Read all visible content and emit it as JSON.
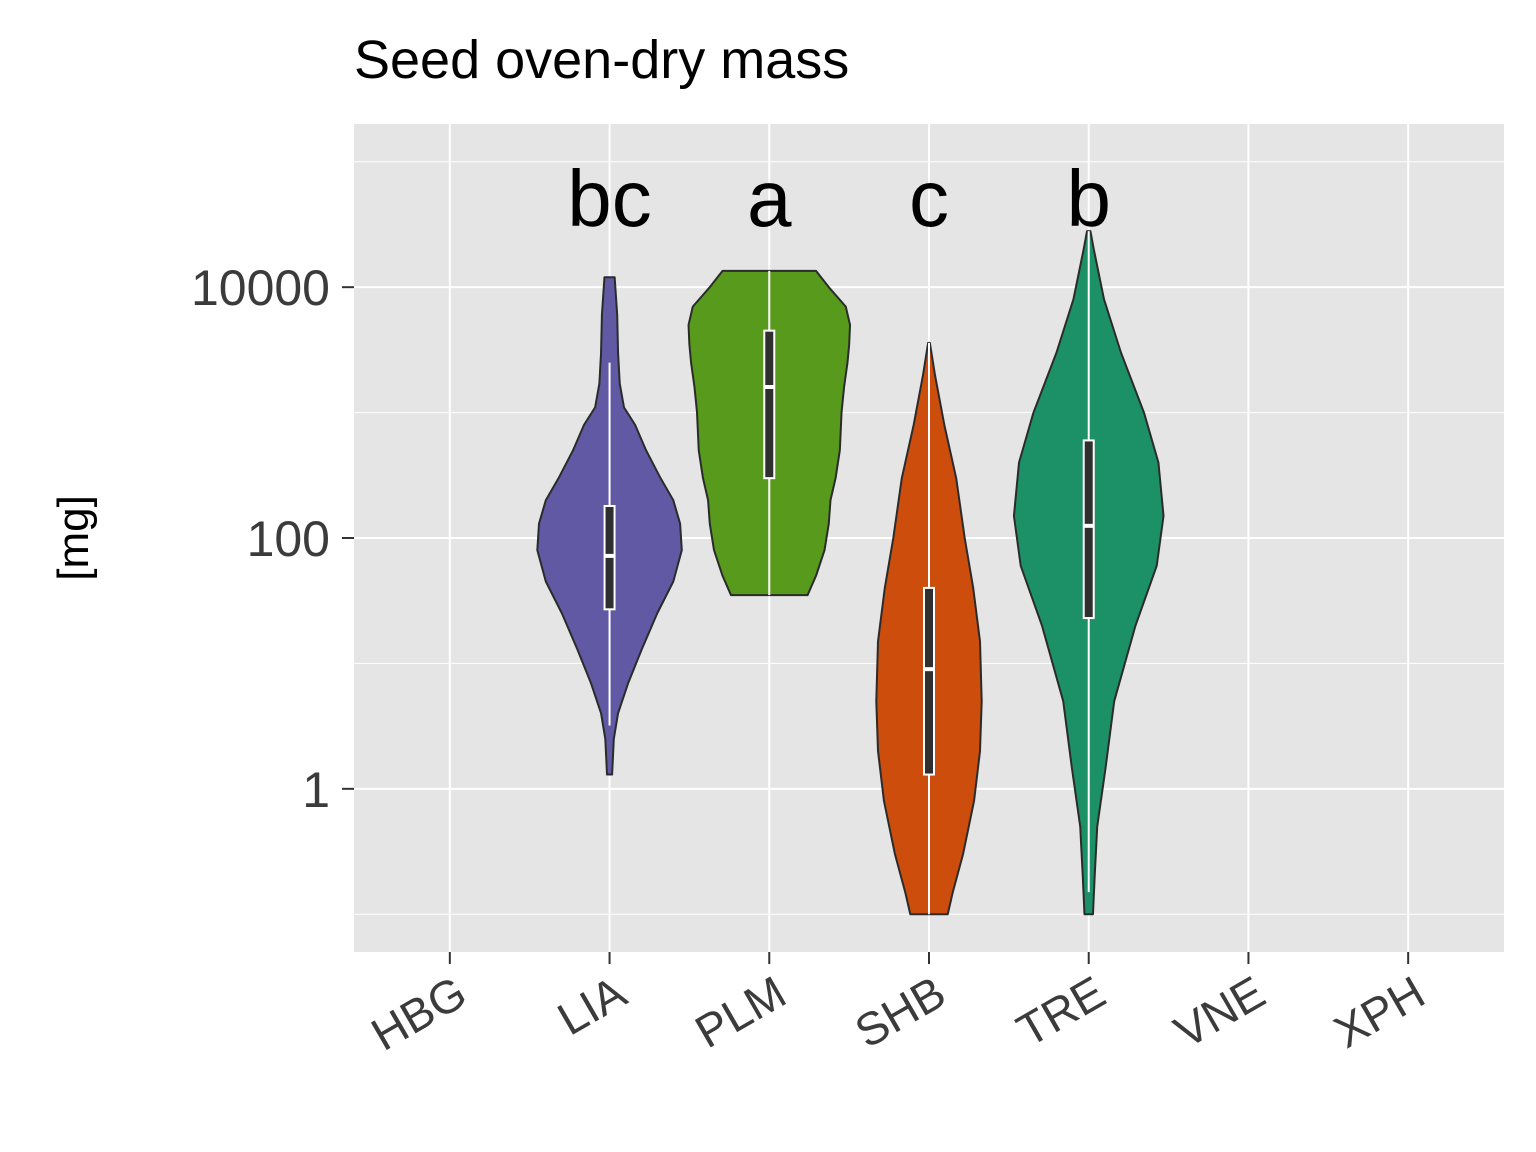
{
  "chart_data": {
    "type": "violin",
    "title": "Seed oven-dry mass",
    "ylabel": "[mg]",
    "yscale": "log10",
    "ylim": [
      0.05,
      200000
    ],
    "yticks": [
      1,
      100,
      10000
    ],
    "ytick_labels": [
      "1",
      "100",
      "10000"
    ],
    "categories": [
      "HBG",
      "LIA",
      "PLM",
      "SHB",
      "TRE",
      "VNE",
      "XPH"
    ],
    "panel_color": "#e5e5e5",
    "grid": true,
    "series": [
      {
        "category": "LIA",
        "color": "#6159a3",
        "letter": "bc",
        "min": 1.3,
        "max": 12000,
        "whisker_low": 3.2,
        "whisker_high": 2500,
        "q1": 27,
        "median": 72,
        "q3": 180,
        "profile": [
          [
            1.3,
            0.03
          ],
          [
            1.8,
            0.04
          ],
          [
            2.5,
            0.05
          ],
          [
            4,
            0.1
          ],
          [
            7,
            0.22
          ],
          [
            13,
            0.38
          ],
          [
            25,
            0.56
          ],
          [
            45,
            0.75
          ],
          [
            80,
            0.85
          ],
          [
            130,
            0.83
          ],
          [
            200,
            0.75
          ],
          [
            300,
            0.6
          ],
          [
            500,
            0.43
          ],
          [
            800,
            0.3
          ],
          [
            1100,
            0.17
          ],
          [
            1700,
            0.12
          ],
          [
            3000,
            0.1
          ],
          [
            6000,
            0.09
          ],
          [
            12000,
            0.06
          ]
        ]
      },
      {
        "category": "PLM",
        "color": "#579a1c",
        "letter": "a",
        "min": 35,
        "max": 13500,
        "whisker_low": 35,
        "whisker_high": 13500,
        "q1": 300,
        "median": 1600,
        "q3": 4500,
        "profile": [
          [
            35,
            0.45
          ],
          [
            50,
            0.55
          ],
          [
            80,
            0.65
          ],
          [
            130,
            0.7
          ],
          [
            200,
            0.72
          ],
          [
            300,
            0.78
          ],
          [
            500,
            0.83
          ],
          [
            1000,
            0.85
          ],
          [
            1600,
            0.88
          ],
          [
            2500,
            0.92
          ],
          [
            3500,
            0.94
          ],
          [
            5000,
            0.95
          ],
          [
            7000,
            0.9
          ],
          [
            10000,
            0.7
          ],
          [
            13500,
            0.55
          ]
        ]
      },
      {
        "category": "SHB",
        "color": "#cc4d0c",
        "letter": "c",
        "min": 0.1,
        "max": 3600,
        "whisker_low": 0.1,
        "whisker_high": 3600,
        "q1": 1.3,
        "median": 9,
        "q3": 40,
        "profile": [
          [
            0.1,
            0.22
          ],
          [
            0.15,
            0.28
          ],
          [
            0.3,
            0.4
          ],
          [
            0.8,
            0.53
          ],
          [
            2,
            0.6
          ],
          [
            5,
            0.62
          ],
          [
            15,
            0.6
          ],
          [
            40,
            0.52
          ],
          [
            100,
            0.42
          ],
          [
            300,
            0.32
          ],
          [
            800,
            0.18
          ],
          [
            2000,
            0.07
          ],
          [
            3600,
            0.01
          ]
        ]
      },
      {
        "category": "TRE",
        "color": "#1c9168",
        "letter": "b",
        "min": 0.1,
        "max": 28000,
        "whisker_low": 0.15,
        "whisker_high": 28000,
        "q1": 23,
        "median": 125,
        "q3": 600,
        "profile": [
          [
            0.1,
            0.05
          ],
          [
            0.2,
            0.07
          ],
          [
            0.5,
            0.1
          ],
          [
            1.5,
            0.2
          ],
          [
            5,
            0.3
          ],
          [
            20,
            0.55
          ],
          [
            60,
            0.8
          ],
          [
            150,
            0.88
          ],
          [
            400,
            0.82
          ],
          [
            1000,
            0.65
          ],
          [
            3000,
            0.38
          ],
          [
            8000,
            0.18
          ],
          [
            20000,
            0.06
          ],
          [
            28000,
            0.02
          ]
        ]
      }
    ]
  }
}
